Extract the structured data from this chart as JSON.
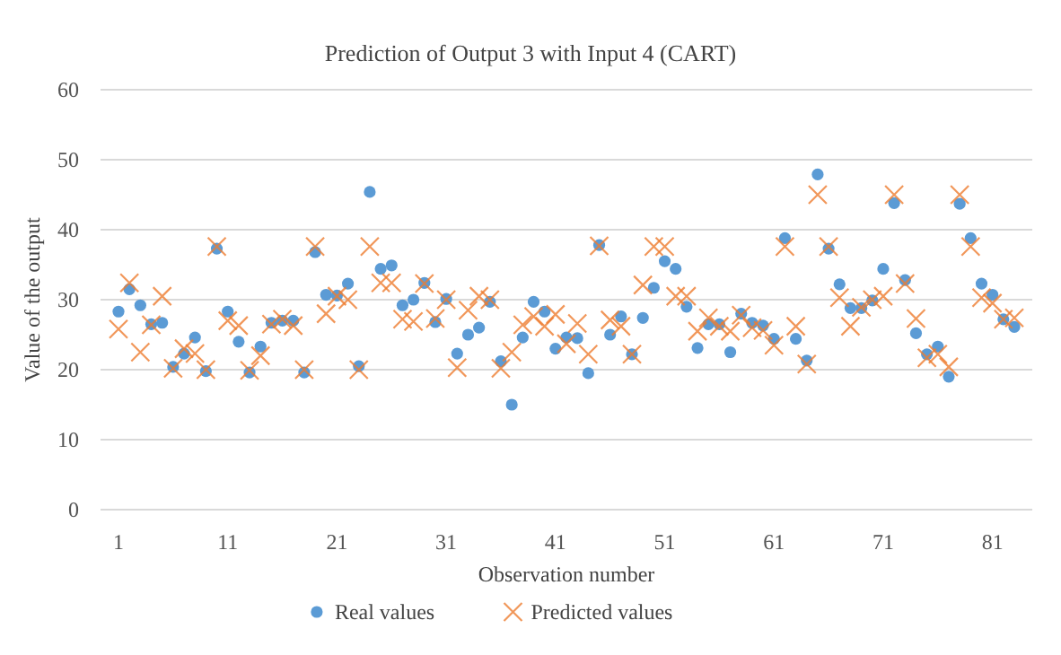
{
  "chart_data": {
    "type": "scatter",
    "title": "Prediction of Output 3 with Input 4 (CART)",
    "xlabel": "Observation number",
    "ylabel": "Value of the output",
    "categories": [
      "1",
      null,
      null,
      null,
      null,
      null,
      null,
      null,
      null,
      null,
      "11",
      null,
      null,
      null,
      null,
      null,
      null,
      null,
      null,
      null,
      "21",
      null,
      null,
      null,
      null,
      null,
      null,
      null,
      null,
      null,
      "31",
      null,
      null,
      null,
      null,
      null,
      null,
      null,
      null,
      null,
      "41",
      null,
      null,
      null,
      null,
      null,
      null,
      null,
      null,
      null,
      "51",
      null,
      null,
      null,
      null,
      null,
      null,
      null,
      null,
      null,
      "61",
      null,
      null,
      null,
      null,
      null,
      null,
      null,
      null,
      null,
      "71",
      null,
      null,
      null,
      null,
      null,
      null,
      null,
      null,
      null,
      "81",
      null,
      null
    ],
    "series": [
      {
        "name": "Real values",
        "color": "#5b9bd5",
        "marker": "circle",
        "values": [
          28.3,
          31.5,
          29.2,
          26.5,
          26.7,
          20.4,
          22.3,
          24.6,
          19.8,
          37.3,
          28.3,
          24,
          19.6,
          23.3,
          26.7,
          27,
          27,
          19.6,
          36.8,
          30.7,
          30.6,
          32.3,
          20.5,
          45.4,
          34.4,
          34.9,
          29.2,
          30,
          32.4,
          26.8,
          30.1,
          22.3,
          25,
          26,
          29.7,
          21.2,
          15,
          24.6,
          29.7,
          28.3,
          23,
          24.6,
          24.5,
          19.5,
          37.8,
          25,
          27.6,
          22.2,
          27.4,
          31.7,
          35.5,
          34.4,
          29,
          23.1,
          26.5,
          26.5,
          22.5,
          28,
          26.7,
          26.3,
          24.4,
          38.8,
          24.4,
          21.3,
          47.9,
          37.3,
          32.2,
          28.8,
          28.8,
          29.9,
          34.4,
          43.8,
          32.8,
          25.2,
          22.2,
          23.3,
          19,
          43.7,
          38.8,
          32.3,
          30.7,
          27.2,
          26.1
        ]
      },
      {
        "name": "Predicted values",
        "color": "#ed7d31",
        "marker": "cross",
        "values": [
          25.8,
          32.4,
          22.5,
          26.4,
          30.5,
          20.2,
          23,
          22.3,
          20,
          37.6,
          27,
          26.3,
          19.9,
          22,
          26.5,
          27.2,
          26.3,
          20,
          37.6,
          28,
          30.5,
          30,
          20,
          37.6,
          32.4,
          32.4,
          27.2,
          26.9,
          32.3,
          27.3,
          30,
          20.3,
          28.5,
          30.5,
          30,
          20.2,
          22.5,
          26.4,
          27.6,
          26.2,
          27.9,
          23.7,
          26.6,
          22.2,
          37.7,
          27.1,
          26.2,
          22.2,
          32.1,
          37.6,
          37.6,
          30.5,
          30.5,
          25.5,
          27.4,
          26.2,
          25.5,
          27.8,
          26,
          25.6,
          23.5,
          37.6,
          26.2,
          20.8,
          45,
          37.6,
          30.3,
          26.2,
          28.9,
          30,
          30.5,
          45,
          32.3,
          27.3,
          21.7,
          22.2,
          20.4,
          45,
          37.6,
          30.3,
          29.5,
          27.2,
          27.4
        ]
      }
    ],
    "ylim": [
      0,
      60
    ],
    "yticks": [
      0,
      10,
      20,
      30,
      40,
      50,
      60
    ],
    "grid": "y",
    "legend": "bottom"
  }
}
